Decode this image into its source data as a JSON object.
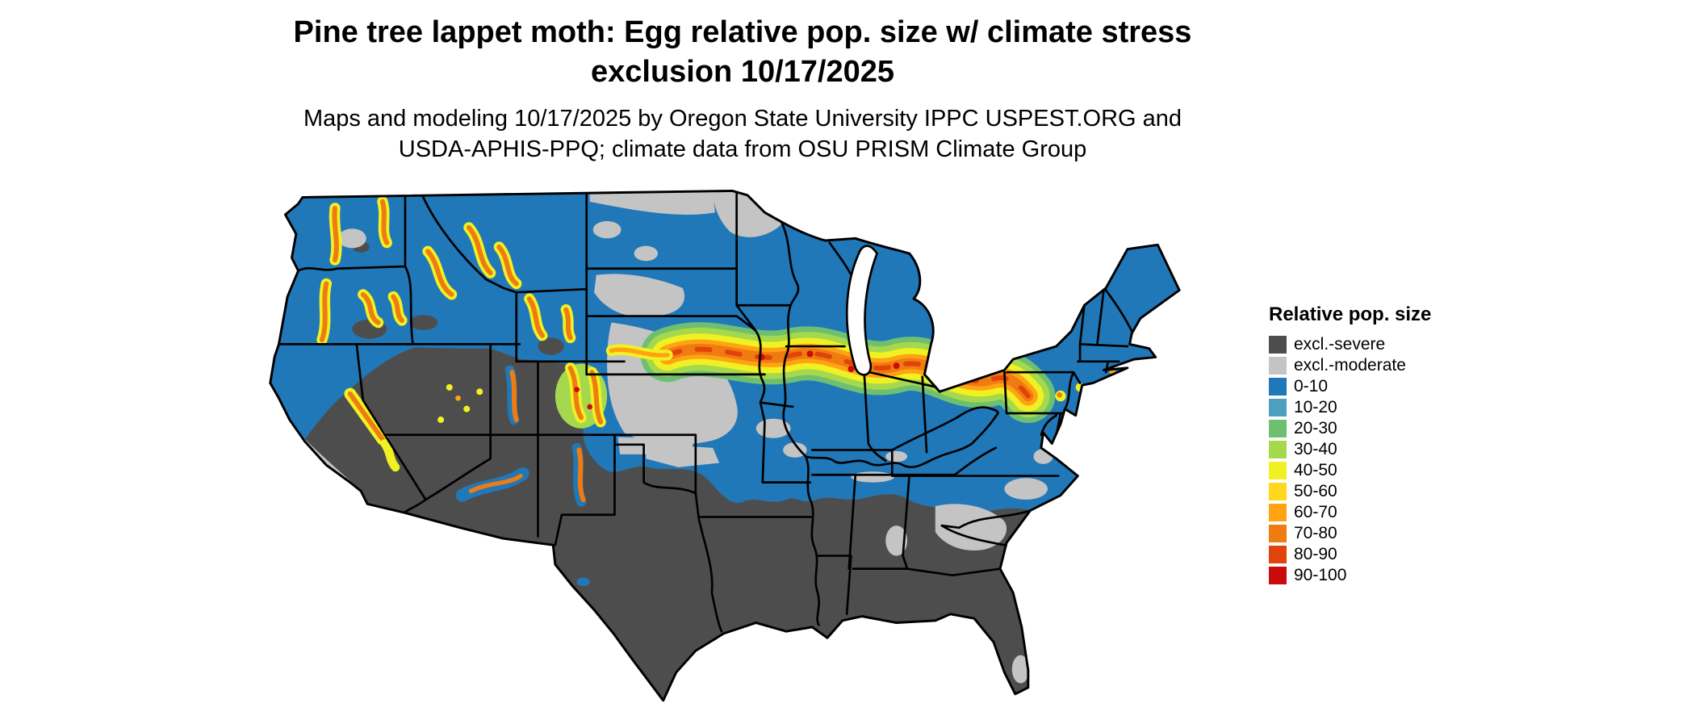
{
  "title": {
    "line1": "Pine tree lappet moth: Egg relative pop. size w/ climate stress",
    "line2": "exclusion 10/17/2025"
  },
  "subtitle": {
    "line1": "Maps and modeling 10/17/2025 by Oregon State University IPPC USPEST.ORG and",
    "line2": "USDA-APHIS-PPQ; climate data from OSU PRISM Climate Group"
  },
  "map": {
    "region": "Contiguous United States"
  },
  "legend": {
    "title": "Relative pop. size",
    "items": [
      {
        "key": "excl-severe",
        "label": "excl.-severe",
        "color": "#4d4d4d"
      },
      {
        "key": "excl-moderate",
        "label": "excl.-moderate",
        "color": "#c4c4c4"
      },
      {
        "key": "0-10",
        "label": "0-10",
        "color": "#2078b8"
      },
      {
        "key": "10-20",
        "label": "10-20",
        "color": "#4d9fc0"
      },
      {
        "key": "20-30",
        "label": "20-30",
        "color": "#6ebf70"
      },
      {
        "key": "30-40",
        "label": "30-40",
        "color": "#a6d84e"
      },
      {
        "key": "40-50",
        "label": "40-50",
        "color": "#f0f122"
      },
      {
        "key": "50-60",
        "label": "50-60",
        "color": "#ffd71e"
      },
      {
        "key": "60-70",
        "label": "60-70",
        "color": "#ffa313"
      },
      {
        "key": "70-80",
        "label": "70-80",
        "color": "#ef7c10"
      },
      {
        "key": "80-90",
        "label": "80-90",
        "color": "#e0440b"
      },
      {
        "key": "90-100",
        "label": "90-100",
        "color": "#cb0b0b"
      }
    ]
  }
}
